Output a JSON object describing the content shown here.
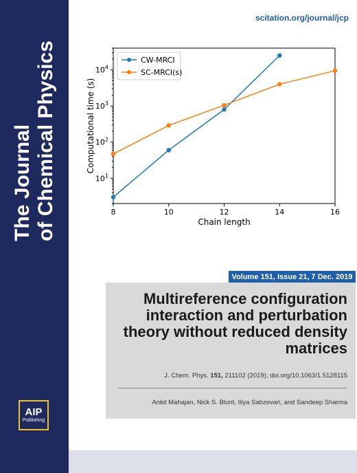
{
  "journal": {
    "title_line1": "The Journal",
    "title_line2": "of Chemical Physics",
    "url": "scitation.org/journal/jcp",
    "publisher_line1": "AIP",
    "publisher_line2": "Publishing"
  },
  "issue": {
    "label": "Volume 151, Issue 21, 7 Dec. 2019"
  },
  "article": {
    "title": "Multireference configuration interaction and perturbation theory without reduced density matrices",
    "citation_prefix": "J. Chem. Phys. ",
    "citation_volume": "151,",
    "citation_rest": " 211102 (2019); doi.org/10.1063/1.5128115",
    "authors": "Ankit Mahajan, Nick S. Blunt, Iliya Sabzevari, and Sandeep Sharma"
  },
  "colors": {
    "spine": "#1e2a5e",
    "accent": "#1f5fa8",
    "logo_border": "#f2c22c"
  },
  "chart_data": {
    "type": "line",
    "xlabel": "Chain length",
    "ylabel": "Computational time (s)",
    "yscale": "log",
    "xlim": [
      8,
      16
    ],
    "ylim": [
      2,
      40000
    ],
    "xticks": [
      8,
      10,
      12,
      14,
      16
    ],
    "yticks": [
      {
        "value": 10,
        "base": "10",
        "exp": "1"
      },
      {
        "value": 100,
        "base": "10",
        "exp": "2"
      },
      {
        "value": 1000,
        "base": "10",
        "exp": "3"
      },
      {
        "value": 10000,
        "base": "10",
        "exp": "4"
      }
    ],
    "legend_position": "top-left",
    "grid": false,
    "series": [
      {
        "name": "CW-MRCI",
        "color": "#1f77b4",
        "x": [
          8,
          10,
          12,
          14
        ],
        "y": [
          3,
          60,
          800,
          25000
        ]
      },
      {
        "name": "SC-MRCI(s)",
        "color": "#ff7f0e",
        "x": [
          8,
          10,
          12,
          14,
          16
        ],
        "y": [
          47,
          290,
          1050,
          4000,
          9500
        ]
      }
    ]
  }
}
